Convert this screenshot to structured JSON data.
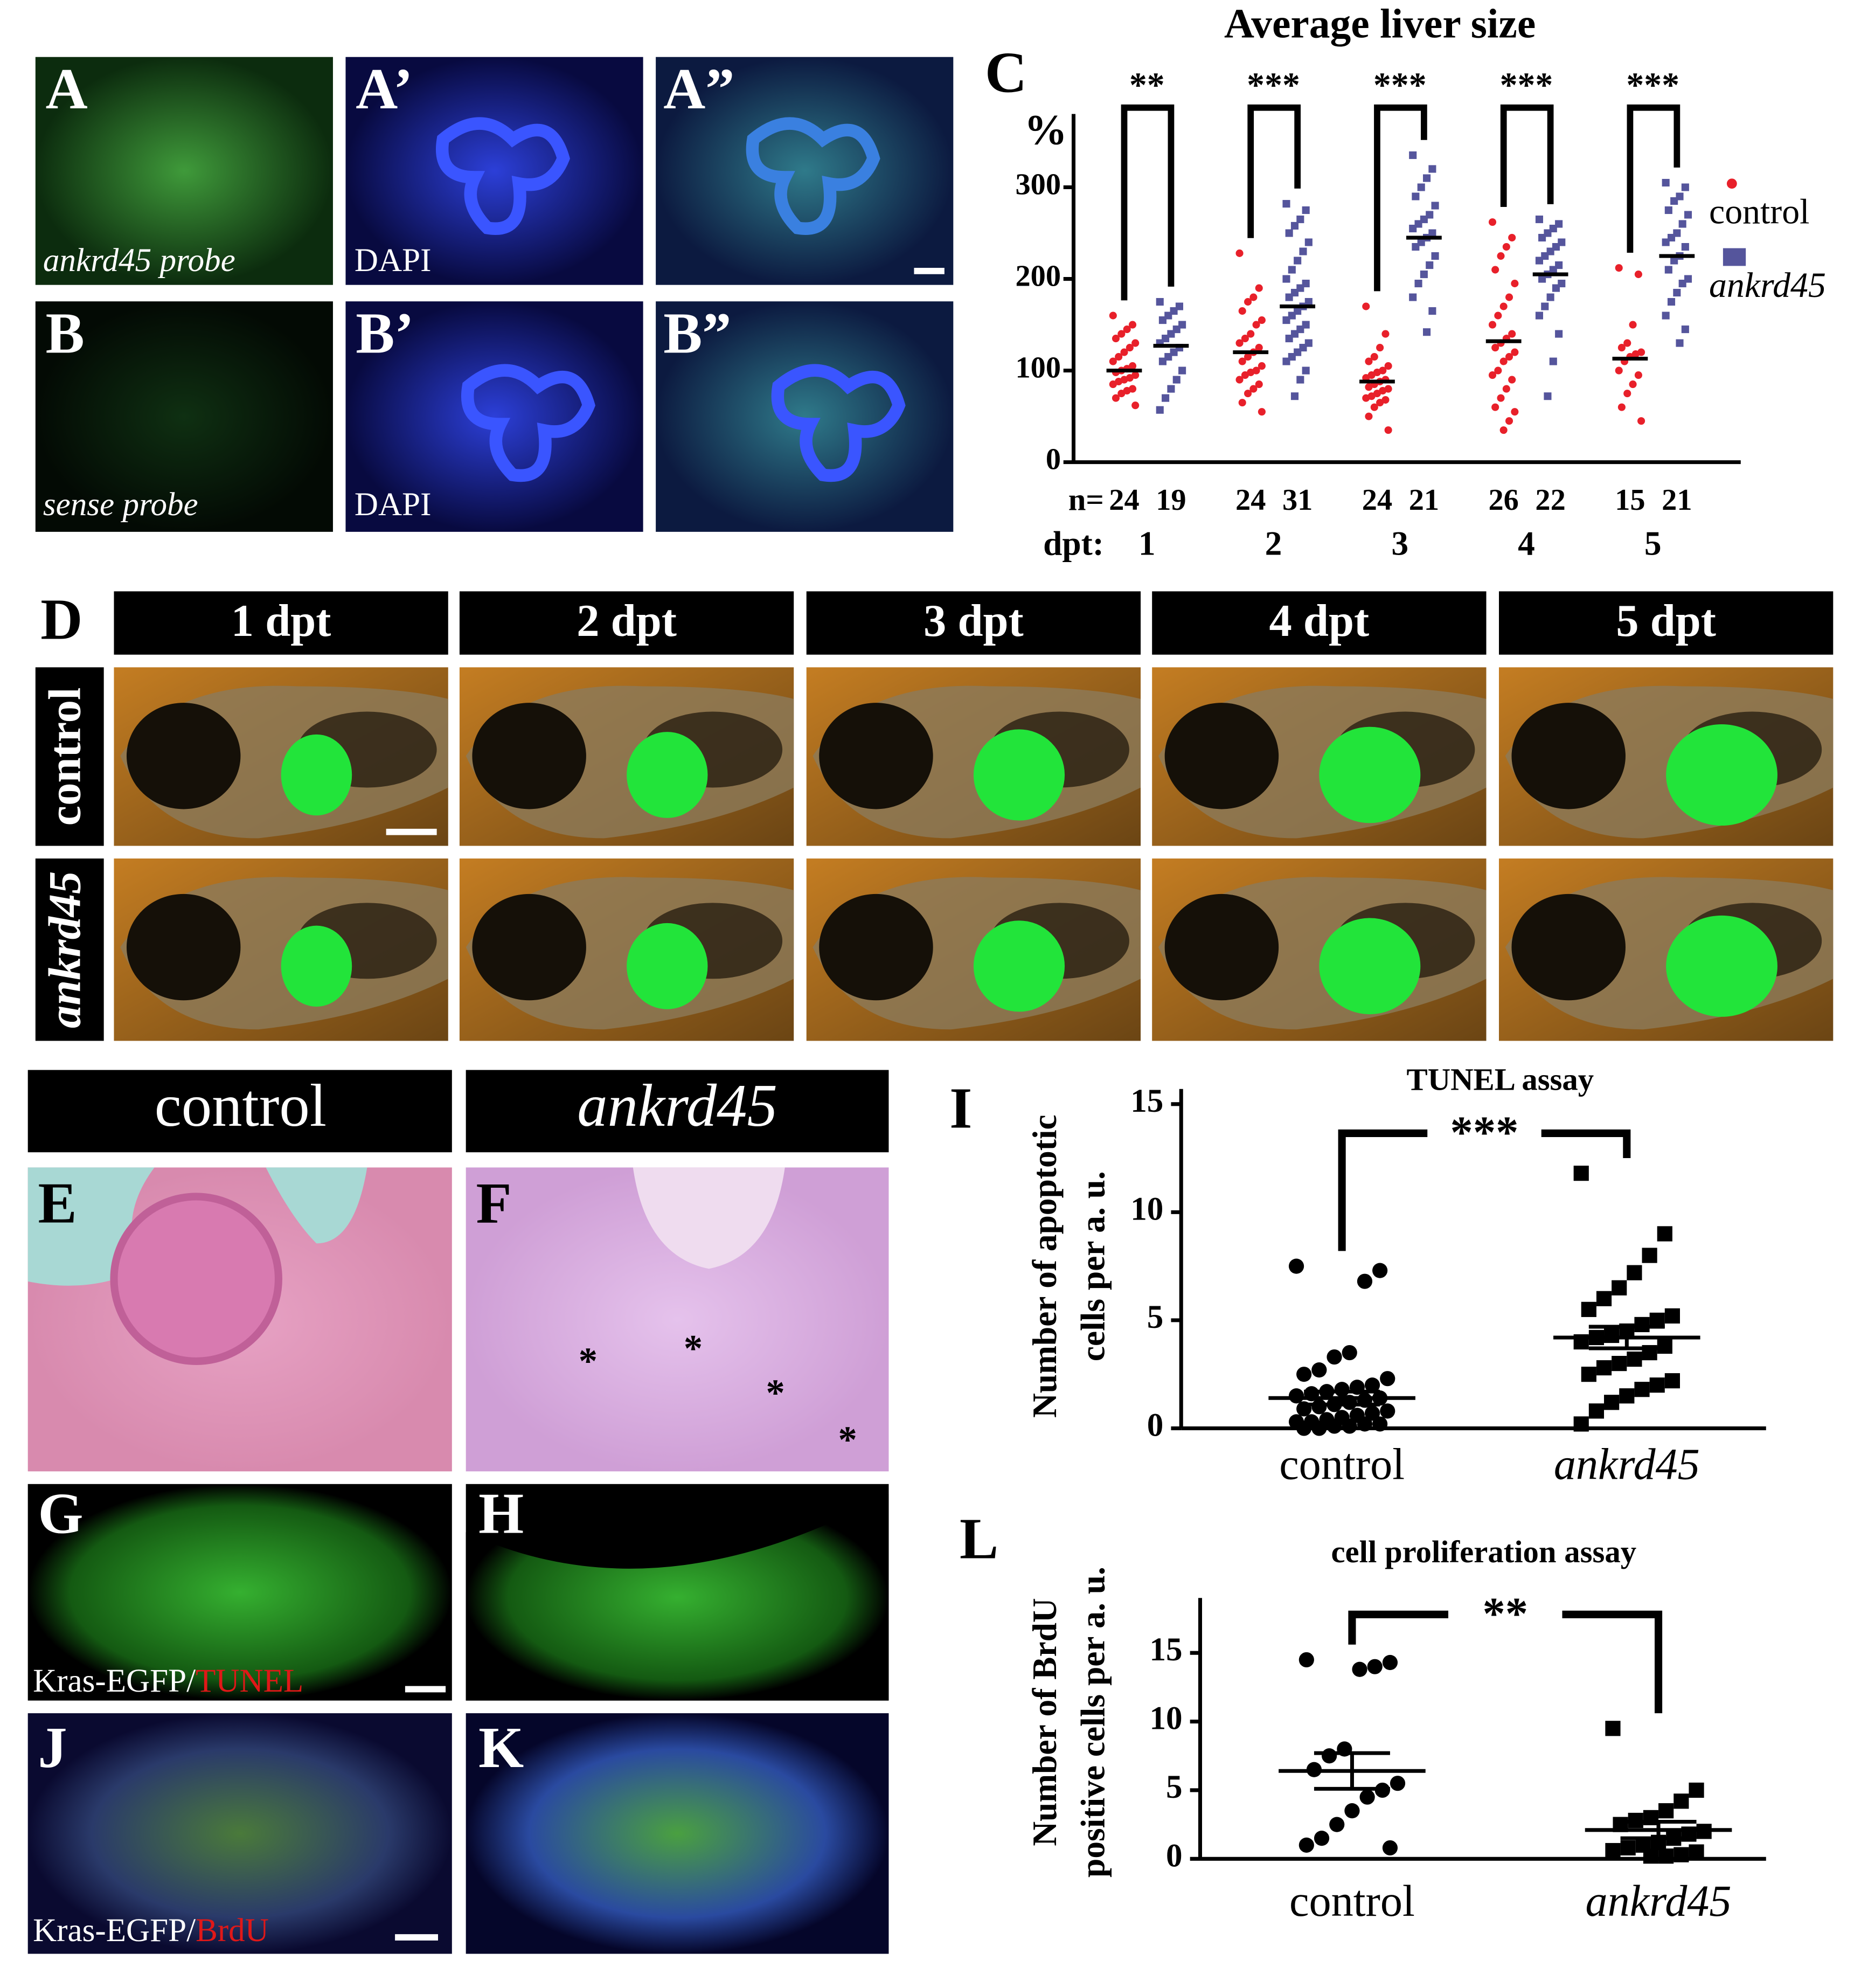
{
  "figure": {
    "panel_labels": [
      "A",
      "A’",
      "A”",
      "B",
      "B’",
      "B”",
      "C",
      "D",
      "E",
      "F",
      "G",
      "H",
      "I",
      "J",
      "K",
      "L"
    ],
    "captions": [
      "ankrd45 probe",
      "DAPI",
      "sense probe",
      "DAPI"
    ],
    "d_columns": [
      "1 dpt",
      "2 dpt",
      "3 dpt",
      "4 dpt",
      "5 dpt"
    ],
    "d_rows": [
      "control",
      "ankrd45"
    ],
    "ef_headers": [
      "control",
      "ankrd45"
    ],
    "f_marks": [
      "*",
      "*",
      "*",
      "*"
    ],
    "g_caption": [
      "Kras-EGFP/",
      "TUNEL"
    ],
    "j_caption": [
      "Kras-EGFP/",
      "BrdU"
    ]
  },
  "chart_data": [
    {
      "type": "strip",
      "title": "Average liver size",
      "y_label": "%",
      "x_label": "dpt:",
      "n_label": "n=",
      "categories": [
        "1",
        "2",
        "3",
        "4",
        "5"
      ],
      "significance": [
        "**",
        "***",
        "***",
        "***",
        "***"
      ],
      "ylim": [
        0,
        380
      ],
      "yticks": [
        0,
        100,
        200,
        300
      ],
      "legend": "right",
      "series": [
        {
          "name": "control",
          "color": "#e8202a",
          "marker": "circle",
          "n": [
            24,
            24,
            24,
            26,
            15
          ],
          "values": [
            100,
            120,
            88,
            132,
            113
          ],
          "points": [
            [
              160,
              150,
              145,
              140,
              135,
              130,
              125,
              120,
              115,
              110,
              105,
              102,
              100,
              98,
              95,
              92,
              90,
              88,
              85,
              80,
              78,
              75,
              70,
              62
            ],
            [
              228,
              190,
              180,
              175,
              165,
              155,
              150,
              140,
              135,
              130,
              125,
              120,
              115,
              110,
              105,
              100,
              98,
              95,
              90,
              85,
              80,
              75,
              65,
              55
            ],
            [
              170,
              140,
              125,
              115,
              110,
              105,
              100,
              98,
              95,
              92,
              90,
              88,
              85,
              82,
              80,
              78,
              75,
              72,
              70,
              68,
              65,
              60,
              50,
              35
            ],
            [
              262,
              245,
              235,
              225,
              210,
              195,
              180,
              170,
              160,
              150,
              140,
              135,
              130,
              125,
              120,
              115,
              110,
              100,
              95,
              90,
              80,
              70,
              60,
              55,
              45,
              35
            ],
            [
              212,
              205,
              150,
              130,
              125,
              120,
              118,
              115,
              110,
              100,
              95,
              85,
              75,
              60,
              45
            ]
          ]
        },
        {
          "name": "ankrd45",
          "color": "#55559c",
          "marker": "square",
          "n": [
            19,
            31,
            21,
            22,
            21
          ],
          "values": [
            127,
            170,
            245,
            205,
            225
          ],
          "points": [
            [
              175,
              170,
              165,
              160,
              155,
              150,
              145,
              140,
              135,
              130,
              125,
              120,
              115,
              110,
              100,
              90,
              80,
              70,
              57
            ],
            [
              282,
              275,
              265,
              258,
              250,
              240,
              230,
              220,
              210,
              200,
              195,
              190,
              185,
              180,
              175,
              170,
              165,
              160,
              155,
              150,
              145,
              140,
              135,
              130,
              125,
              120,
              115,
              110,
              100,
              90,
              72
            ],
            [
              335,
              320,
              310,
              300,
              290,
              280,
              270,
              265,
              260,
              255,
              250,
              245,
              240,
              235,
              225,
              215,
              205,
              195,
              180,
              165,
              142
            ],
            [
              265,
              260,
              255,
              250,
              245,
              240,
              235,
              230,
              225,
              220,
              215,
              210,
              205,
              200,
              195,
              190,
              180,
              170,
              160,
              140,
              110,
              72
            ],
            [
              305,
              300,
              290,
              285,
              275,
              270,
              260,
              250,
              245,
              240,
              235,
              225,
              220,
              210,
              200,
              195,
              185,
              175,
              160,
              145,
              130
            ]
          ]
        }
      ]
    },
    {
      "type": "dot",
      "title": "TUNEL assay",
      "y_label": [
        "Number of apoptotic",
        "cells per  a. u."
      ],
      "categories": [
        "control",
        "ankrd45"
      ],
      "significance": "***",
      "color": "#000000",
      "markers": [
        "circle",
        "square"
      ],
      "ylim": [
        0,
        15.7
      ],
      "yticks": [
        0,
        5,
        10,
        15
      ],
      "values": [
        1.4,
        4.2
      ],
      "errors": [
        0.3,
        0.5
      ],
      "points": [
        [
          7.5,
          7.3,
          6.8,
          3.5,
          3.3,
          2.7,
          2.5,
          2.3,
          2.0,
          1.9,
          1.8,
          1.7,
          1.6,
          1.5,
          1.4,
          1.3,
          1.2,
          1.1,
          1.0,
          0.9,
          0.8,
          0.7,
          0.6,
          0.5,
          0.4,
          0.3,
          0.3,
          0.2,
          0.2,
          0.1,
          0.1,
          0.0,
          0.0
        ],
        [
          11.8,
          9.0,
          8.0,
          7.2,
          6.5,
          6.0,
          5.5,
          5.2,
          5.0,
          4.8,
          4.5,
          4.3,
          4.2,
          4.0,
          3.8,
          3.5,
          3.2,
          3.0,
          2.8,
          2.5,
          2.2,
          2.0,
          1.8,
          1.5,
          1.2,
          0.8,
          0.2
        ]
      ]
    },
    {
      "type": "dot",
      "title": "cell proliferation assay",
      "y_label": [
        "Number of BrdU",
        "positive cells per  a. u."
      ],
      "categories": [
        "control",
        "ankrd45"
      ],
      "significance": "**",
      "color": "#000000",
      "markers": [
        "circle",
        "square"
      ],
      "ylim": [
        0,
        19
      ],
      "yticks": [
        0,
        5,
        10,
        15
      ],
      "values": [
        6.4,
        2.1
      ],
      "errors": [
        1.3,
        0.6
      ],
      "points": [
        [
          14.5,
          14.3,
          14.0,
          13.8,
          8.0,
          7.5,
          6.5,
          5.5,
          5.0,
          4.5,
          3.5,
          2.5,
          1.5,
          1.0,
          0.8
        ],
        [
          9.5,
          5.0,
          4.2,
          3.5,
          3.0,
          2.8,
          2.5,
          2.0,
          1.8,
          1.5,
          1.2,
          1.0,
          0.8,
          0.6,
          0.5,
          0.3,
          0.2,
          0.2
        ]
      ]
    }
  ]
}
